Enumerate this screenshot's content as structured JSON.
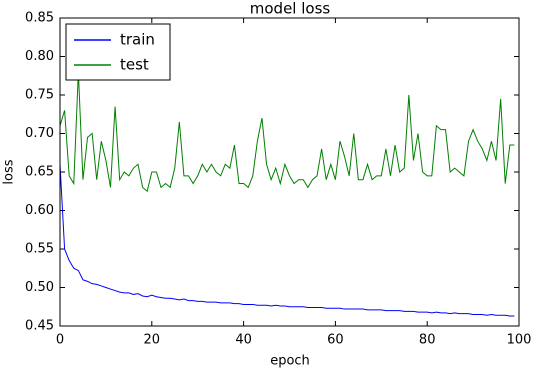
{
  "chart_data": {
    "type": "line",
    "title": "model loss",
    "x_label": "epoch",
    "y_label": "loss",
    "x": [
      0,
      1,
      2,
      3,
      4,
      5,
      6,
      7,
      8,
      9,
      10,
      11,
      12,
      13,
      14,
      15,
      16,
      17,
      18,
      19,
      20,
      21,
      22,
      23,
      24,
      25,
      26,
      27,
      28,
      29,
      30,
      31,
      32,
      33,
      34,
      35,
      36,
      37,
      38,
      39,
      40,
      41,
      42,
      43,
      44,
      45,
      46,
      47,
      48,
      49,
      50,
      51,
      52,
      53,
      54,
      55,
      56,
      57,
      58,
      59,
      60,
      61,
      62,
      63,
      64,
      65,
      66,
      67,
      68,
      69,
      70,
      71,
      72,
      73,
      74,
      75,
      76,
      77,
      78,
      79,
      80,
      81,
      82,
      83,
      84,
      85,
      86,
      87,
      88,
      89,
      90,
      91,
      92,
      93,
      94,
      95,
      96,
      97,
      98,
      99
    ],
    "series": [
      {
        "name": "train",
        "color": "#0000ff",
        "values": [
          0.66,
          0.55,
          0.535,
          0.525,
          0.522,
          0.51,
          0.508,
          0.505,
          0.504,
          0.502,
          0.5,
          0.498,
          0.496,
          0.494,
          0.493,
          0.493,
          0.491,
          0.492,
          0.489,
          0.488,
          0.49,
          0.488,
          0.487,
          0.486,
          0.486,
          0.485,
          0.484,
          0.485,
          0.483,
          0.483,
          0.482,
          0.482,
          0.481,
          0.481,
          0.481,
          0.48,
          0.48,
          0.48,
          0.479,
          0.479,
          0.478,
          0.478,
          0.478,
          0.477,
          0.477,
          0.477,
          0.476,
          0.477,
          0.476,
          0.476,
          0.475,
          0.475,
          0.475,
          0.475,
          0.474,
          0.474,
          0.474,
          0.474,
          0.473,
          0.473,
          0.473,
          0.473,
          0.472,
          0.472,
          0.472,
          0.472,
          0.472,
          0.471,
          0.471,
          0.471,
          0.471,
          0.47,
          0.47,
          0.47,
          0.47,
          0.469,
          0.469,
          0.469,
          0.468,
          0.468,
          0.468,
          0.467,
          0.468,
          0.467,
          0.467,
          0.466,
          0.467,
          0.466,
          0.466,
          0.466,
          0.465,
          0.465,
          0.465,
          0.464,
          0.465,
          0.464,
          0.464,
          0.464,
          0.463,
          0.463
        ]
      },
      {
        "name": "test",
        "color": "#008000",
        "values": [
          0.71,
          0.73,
          0.645,
          0.635,
          0.78,
          0.64,
          0.695,
          0.7,
          0.64,
          0.69,
          0.665,
          0.63,
          0.735,
          0.64,
          0.65,
          0.645,
          0.655,
          0.66,
          0.63,
          0.625,
          0.65,
          0.65,
          0.63,
          0.635,
          0.63,
          0.655,
          0.715,
          0.645,
          0.645,
          0.635,
          0.645,
          0.66,
          0.65,
          0.66,
          0.65,
          0.645,
          0.66,
          0.655,
          0.685,
          0.635,
          0.635,
          0.63,
          0.645,
          0.69,
          0.72,
          0.66,
          0.64,
          0.655,
          0.635,
          0.66,
          0.645,
          0.635,
          0.64,
          0.64,
          0.63,
          0.64,
          0.645,
          0.68,
          0.64,
          0.66,
          0.64,
          0.69,
          0.67,
          0.645,
          0.7,
          0.64,
          0.64,
          0.66,
          0.64,
          0.645,
          0.645,
          0.68,
          0.645,
          0.685,
          0.65,
          0.655,
          0.75,
          0.665,
          0.7,
          0.65,
          0.645,
          0.645,
          0.71,
          0.705,
          0.705,
          0.65,
          0.655,
          0.65,
          0.645,
          0.69,
          0.705,
          0.69,
          0.68,
          0.665,
          0.69,
          0.665,
          0.745,
          0.635,
          0.685,
          0.685
        ]
      }
    ],
    "xlim": [
      0,
      100
    ],
    "ylim": [
      0.45,
      0.85
    ],
    "xticks": [
      0,
      20,
      40,
      60,
      80,
      100
    ],
    "yticks": [
      0.45,
      {
        "value": 0.5,
        "label": "0.50"
      },
      0.55,
      {
        "value": 0.6,
        "label": "0.60"
      },
      0.65,
      {
        "value": 0.7,
        "label": "0.70"
      },
      0.75,
      {
        "value": 0.8,
        "label": "0.80"
      },
      0.85
    ],
    "legend": "upper left"
  }
}
